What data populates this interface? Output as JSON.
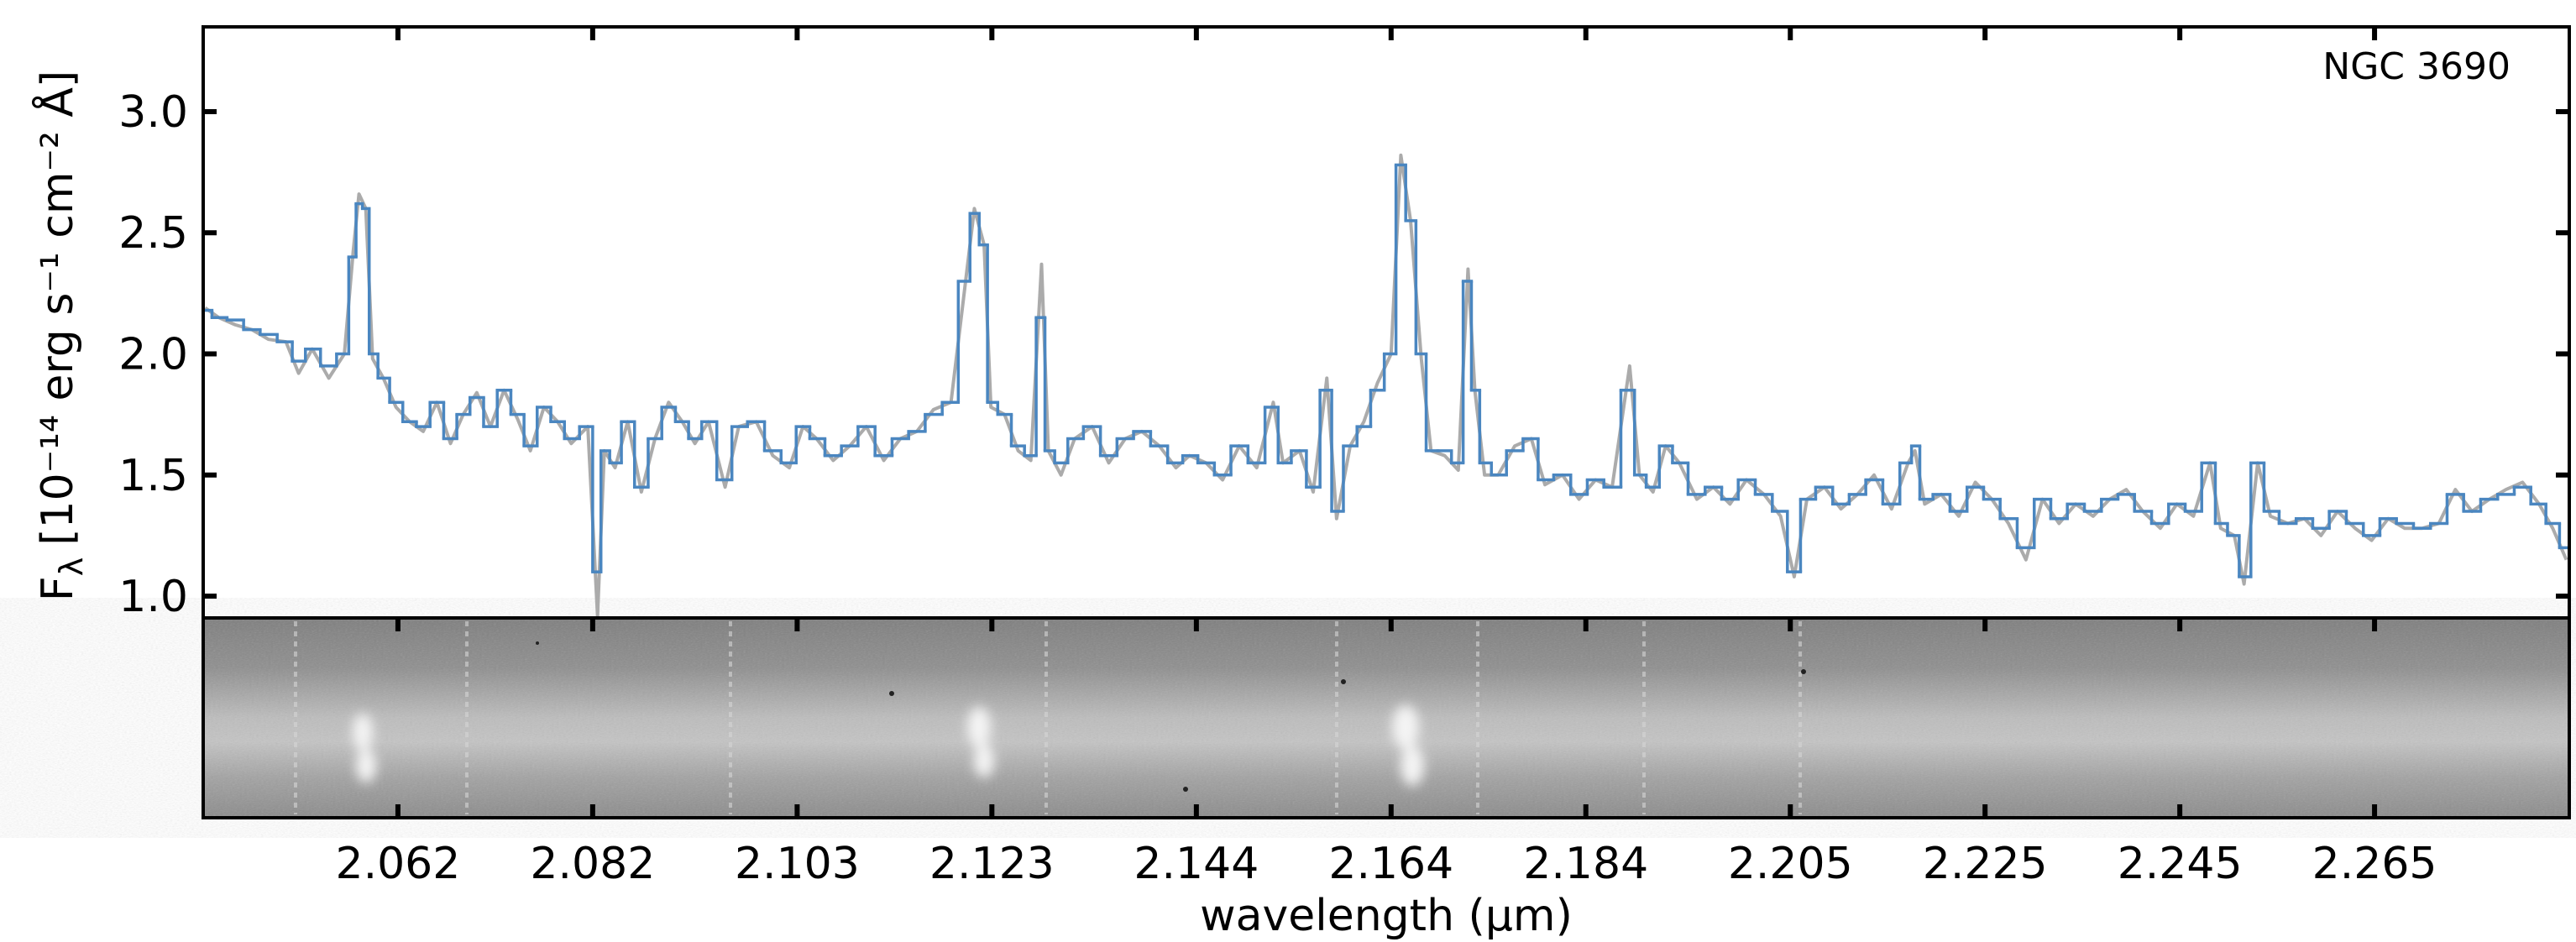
{
  "chart_data": {
    "type": "line",
    "annotation": "NGC 3690",
    "x_label": "wavelength (µm)",
    "y_label": {
      "symbol": "F",
      "subscript": "λ",
      "units": "[10⁻¹⁴ erg s⁻¹ cm⁻² Å]"
    },
    "xlim": [
      2.042,
      2.285
    ],
    "xticks": [
      2.062,
      2.082,
      2.103,
      2.123,
      2.144,
      2.164,
      2.184,
      2.205,
      2.225,
      2.245,
      2.265
    ],
    "ylim": [
      0.91,
      3.35
    ],
    "yticks": [
      {
        "value": 1,
        "label": "1.0"
      },
      {
        "value": 1.5,
        "label": "1.5"
      },
      {
        "value": 2,
        "label": "2.0"
      },
      {
        "value": 2.5,
        "label": "2.5"
      },
      {
        "value": 3,
        "label": "3.0"
      }
    ],
    "x": [
      2.0422,
      2.0436,
      2.0453,
      2.047,
      2.0487,
      2.0505,
      2.0518,
      2.0532,
      2.0549,
      2.0565,
      2.0574,
      2.058,
      2.0587,
      2.0594,
      2.0605,
      2.0618,
      2.0632,
      2.0646,
      2.066,
      2.0674,
      2.0687,
      2.0701,
      2.0715,
      2.0729,
      2.0743,
      2.0756,
      2.077,
      2.0784,
      2.0798,
      2.0815,
      2.0825,
      2.0832,
      2.0843,
      2.0856,
      2.087,
      2.0884,
      2.0898,
      2.0912,
      2.0925,
      2.0939,
      2.0956,
      2.097,
      2.0988,
      2.1005,
      2.1022,
      2.1036,
      2.105,
      2.1067,
      2.1084,
      2.1101,
      2.1119,
      2.1136,
      2.1153,
      2.117,
      2.1188,
      2.1203,
      2.1212,
      2.1222,
      2.1229,
      2.1243,
      2.1257,
      2.127,
      2.1281,
      2.1288,
      2.1301,
      2.1315,
      2.1333,
      2.135,
      2.1367,
      2.1384,
      2.1402,
      2.1419,
      2.1433,
      2.145,
      2.1467,
      2.1484,
      2.1502,
      2.1519,
      2.1529,
      2.1546,
      2.156,
      2.1574,
      2.1584,
      2.1598,
      2.1612,
      2.1626,
      2.164,
      2.165,
      2.166,
      2.1671,
      2.1681,
      2.1695,
      2.1709,
      2.1719,
      2.1726,
      2.1736,
      2.175,
      2.1767,
      2.1784,
      2.1798,
      2.1816,
      2.1833,
      2.185,
      2.1867,
      2.1885,
      2.1895,
      2.1909,
      2.1922,
      2.1936,
      2.1954,
      2.1971,
      2.1988,
      2.2005,
      2.2023,
      2.204,
      2.2054,
      2.2067,
      2.2085,
      2.2102,
      2.2119,
      2.2136,
      2.2154,
      2.2171,
      2.2178,
      2.2188,
      2.2205,
      2.2223,
      2.224,
      2.2257,
      2.2274,
      2.2292,
      2.2309,
      2.2326,
      2.2343,
      2.2361,
      2.2378,
      2.2395,
      2.2412,
      2.243,
      2.2447,
      2.2464,
      2.2481,
      2.2492,
      2.2506,
      2.2516,
      2.253,
      2.2543,
      2.2561,
      2.2578,
      2.2595,
      2.2612,
      2.263,
      2.2647,
      2.2664,
      2.2681,
      2.2699,
      2.2716,
      2.2733,
      2.275,
      2.2768,
      2.2785,
      2.2802,
      2.2819,
      2.2833,
      2.2847
    ],
    "series": [
      {
        "color": "#ababab",
        "drawstyle": "default",
        "values": [
          2.19,
          2.15,
          2.12,
          2.1,
          2.06,
          2.05,
          1.92,
          2.02,
          1.9,
          2.0,
          2.42,
          2.66,
          2.6,
          1.98,
          1.9,
          1.78,
          1.72,
          1.68,
          1.8,
          1.63,
          1.75,
          1.84,
          1.7,
          1.85,
          1.73,
          1.6,
          1.78,
          1.72,
          1.63,
          1.7,
          0.92,
          1.6,
          1.53,
          1.72,
          1.43,
          1.65,
          1.8,
          1.72,
          1.63,
          1.72,
          1.45,
          1.7,
          1.72,
          1.58,
          1.53,
          1.7,
          1.65,
          1.56,
          1.62,
          1.7,
          1.56,
          1.65,
          1.68,
          1.77,
          1.8,
          2.3,
          2.6,
          2.45,
          1.78,
          1.75,
          1.6,
          1.56,
          2.37,
          1.6,
          1.5,
          1.65,
          1.7,
          1.55,
          1.65,
          1.68,
          1.62,
          1.53,
          1.58,
          1.55,
          1.48,
          1.62,
          1.53,
          1.8,
          1.55,
          1.6,
          1.43,
          1.9,
          1.32,
          1.62,
          1.72,
          1.88,
          2.0,
          2.82,
          2.55,
          1.98,
          1.6,
          1.58,
          1.52,
          2.35,
          1.85,
          1.5,
          1.5,
          1.62,
          1.65,
          1.46,
          1.5,
          1.4,
          1.48,
          1.45,
          1.95,
          1.5,
          1.43,
          1.62,
          1.55,
          1.4,
          1.45,
          1.38,
          1.48,
          1.42,
          1.33,
          1.08,
          1.4,
          1.45,
          1.36,
          1.42,
          1.5,
          1.36,
          1.55,
          1.6,
          1.38,
          1.42,
          1.33,
          1.47,
          1.4,
          1.3,
          1.15,
          1.4,
          1.3,
          1.38,
          1.33,
          1.4,
          1.44,
          1.35,
          1.28,
          1.38,
          1.33,
          1.55,
          1.28,
          1.25,
          1.05,
          1.55,
          1.33,
          1.3,
          1.32,
          1.25,
          1.35,
          1.28,
          1.23,
          1.32,
          1.28,
          1.28,
          1.3,
          1.44,
          1.35,
          1.4,
          1.44,
          1.47,
          1.38,
          1.28,
          1.15
        ]
      },
      {
        "color": "#4a86c0",
        "drawstyle": "steps-mid",
        "values": [
          2.18,
          2.15,
          2.14,
          2.1,
          2.08,
          2.05,
          1.97,
          2.02,
          1.95,
          2.0,
          2.4,
          2.62,
          2.6,
          2.0,
          1.9,
          1.8,
          1.72,
          1.7,
          1.8,
          1.65,
          1.75,
          1.82,
          1.7,
          1.85,
          1.75,
          1.62,
          1.78,
          1.72,
          1.65,
          1.7,
          1.1,
          1.6,
          1.55,
          1.72,
          1.45,
          1.65,
          1.78,
          1.72,
          1.65,
          1.72,
          1.48,
          1.7,
          1.72,
          1.6,
          1.55,
          1.7,
          1.65,
          1.58,
          1.62,
          1.7,
          1.58,
          1.65,
          1.68,
          1.75,
          1.8,
          2.3,
          2.58,
          2.45,
          1.8,
          1.75,
          1.62,
          1.58,
          2.15,
          1.6,
          1.55,
          1.65,
          1.7,
          1.58,
          1.65,
          1.68,
          1.62,
          1.55,
          1.58,
          1.55,
          1.5,
          1.62,
          1.55,
          1.78,
          1.55,
          1.6,
          1.45,
          1.85,
          1.35,
          1.62,
          1.7,
          1.85,
          2.0,
          2.78,
          2.55,
          2.0,
          1.6,
          1.6,
          1.55,
          2.3,
          1.85,
          1.55,
          1.5,
          1.6,
          1.65,
          1.48,
          1.5,
          1.42,
          1.48,
          1.45,
          1.85,
          1.5,
          1.45,
          1.62,
          1.55,
          1.42,
          1.45,
          1.4,
          1.48,
          1.42,
          1.35,
          1.1,
          1.4,
          1.45,
          1.38,
          1.42,
          1.48,
          1.38,
          1.55,
          1.62,
          1.4,
          1.42,
          1.35,
          1.45,
          1.4,
          1.32,
          1.2,
          1.4,
          1.32,
          1.38,
          1.35,
          1.4,
          1.42,
          1.35,
          1.3,
          1.38,
          1.35,
          1.55,
          1.3,
          1.25,
          1.08,
          1.55,
          1.35,
          1.3,
          1.32,
          1.28,
          1.35,
          1.3,
          1.25,
          1.32,
          1.3,
          1.28,
          1.3,
          1.42,
          1.35,
          1.4,
          1.42,
          1.45,
          1.38,
          1.3,
          1.2
        ]
      }
    ]
  }
}
